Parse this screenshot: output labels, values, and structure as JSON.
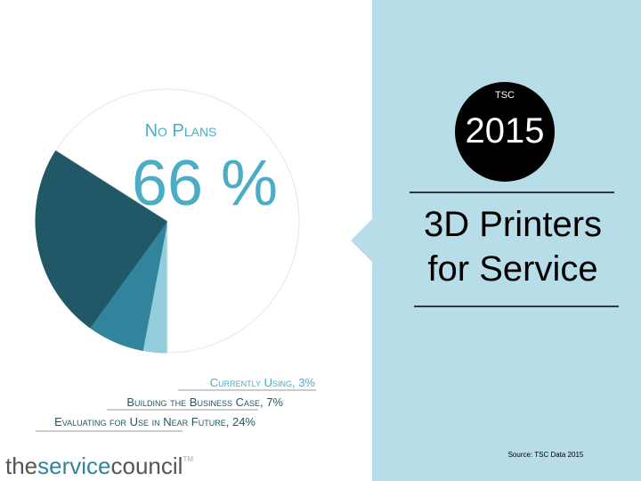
{
  "badge": {
    "label": "TSC",
    "year": "2015"
  },
  "chart_data": {
    "type": "pie",
    "title": [
      "3D Printers",
      "for Service"
    ],
    "categories": [
      "No Plans",
      "Evaluating for Use in Near Future",
      "Building the Business Case",
      "Currently Using"
    ],
    "values": [
      66,
      24,
      7,
      3
    ],
    "value_labels": [
      "66 %",
      "24%",
      "7%",
      "3%"
    ],
    "colors": [
      "#ffffff",
      "#215868",
      "#31849b",
      "#92cddc"
    ]
  },
  "source": "Source: TSC Data 2015",
  "logo": {
    "part1": "the",
    "part2": "service",
    "part3": "council",
    "mark": "TM"
  }
}
